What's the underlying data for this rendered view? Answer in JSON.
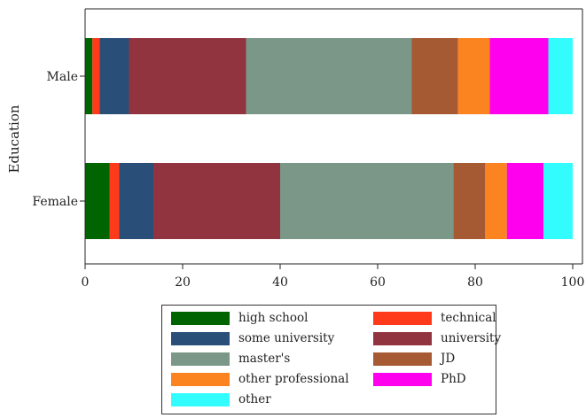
{
  "chart_data": {
    "type": "bar",
    "orientation": "horizontal",
    "stacked": true,
    "ylabel": "Education",
    "xlabel": "",
    "xlim": [
      0,
      100
    ],
    "xticks": [
      0,
      20,
      40,
      60,
      80,
      100
    ],
    "categories": [
      "Male",
      "Female"
    ],
    "series": [
      {
        "name": "high school",
        "color": "#006400",
        "values": [
          1.5,
          5.0
        ]
      },
      {
        "name": "technical",
        "color": "#ff3a1a",
        "values": [
          1.5,
          2.0
        ]
      },
      {
        "name": "some university",
        "color": "#294e78",
        "values": [
          6.0,
          7.0
        ]
      },
      {
        "name": "university",
        "color": "#923440",
        "values": [
          24.0,
          26.0
        ]
      },
      {
        "name": "master's",
        "color": "#7a9788",
        "values": [
          34.0,
          35.5
        ]
      },
      {
        "name": "JD",
        "color": "#a55a34",
        "values": [
          9.5,
          6.5
        ]
      },
      {
        "name": "other professional",
        "color": "#fb8420",
        "values": [
          6.5,
          4.5
        ]
      },
      {
        "name": "PhD",
        "color": "#ff00ee",
        "values": [
          12.0,
          7.5
        ]
      },
      {
        "name": "other",
        "color": "#33fcff",
        "values": [
          5.0,
          6.0
        ]
      }
    ],
    "grid": false,
    "legend_position": "bottom"
  },
  "legend_order": [
    "high school",
    "technical",
    "some university",
    "university",
    "master's",
    "JD",
    "other professional",
    "PhD",
    "other"
  ]
}
